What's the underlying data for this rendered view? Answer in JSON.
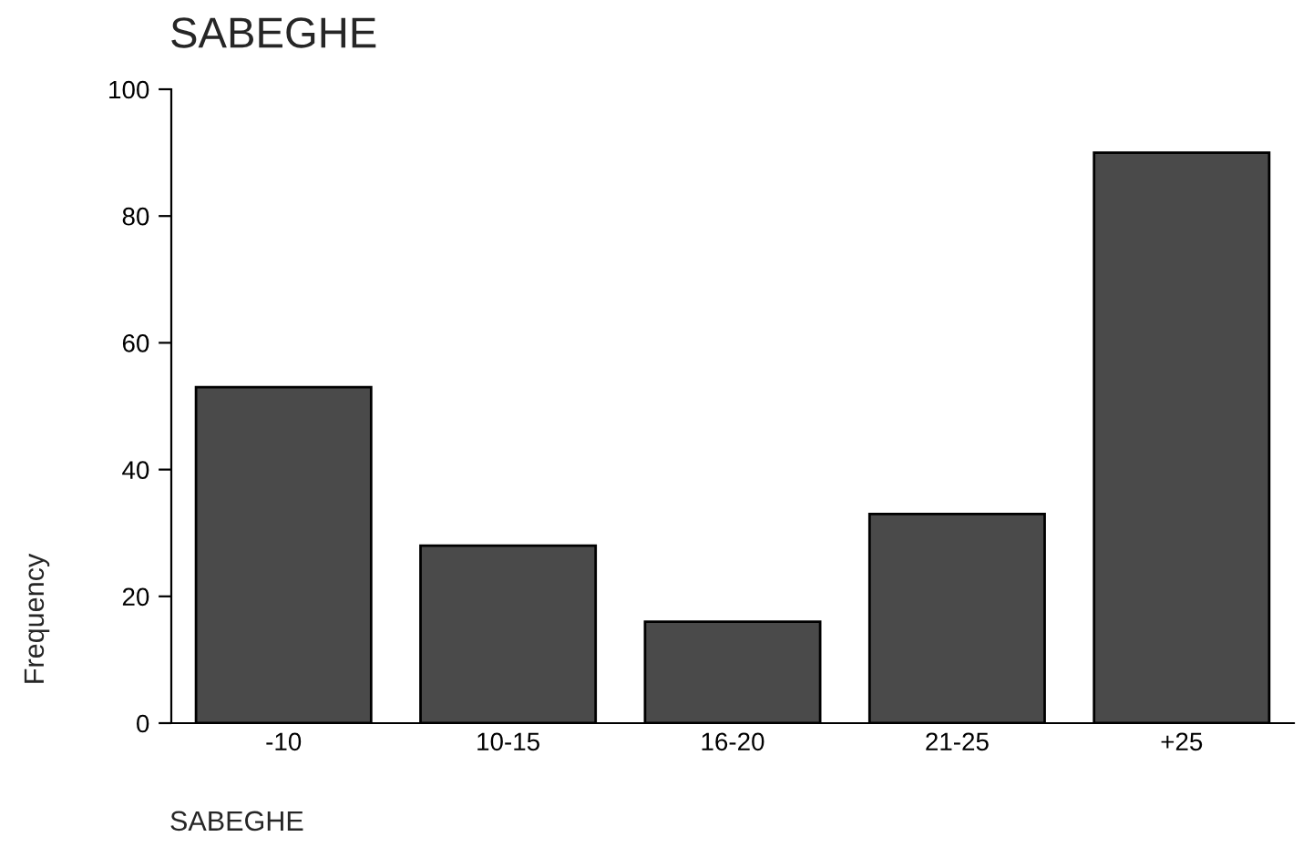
{
  "chart_data": {
    "type": "bar",
    "title": "SABEGHE",
    "xlabel": "SABEGHE",
    "ylabel": "Frequency",
    "categories": [
      "-10",
      "10-15",
      "16-20",
      "21-25",
      "+25"
    ],
    "values": [
      53,
      28,
      16,
      33,
      90
    ],
    "color": "#4a4a4a",
    "ylim": [
      0,
      100
    ],
    "yticks": [
      0,
      20,
      40,
      60,
      80,
      100
    ],
    "grid": false
  }
}
